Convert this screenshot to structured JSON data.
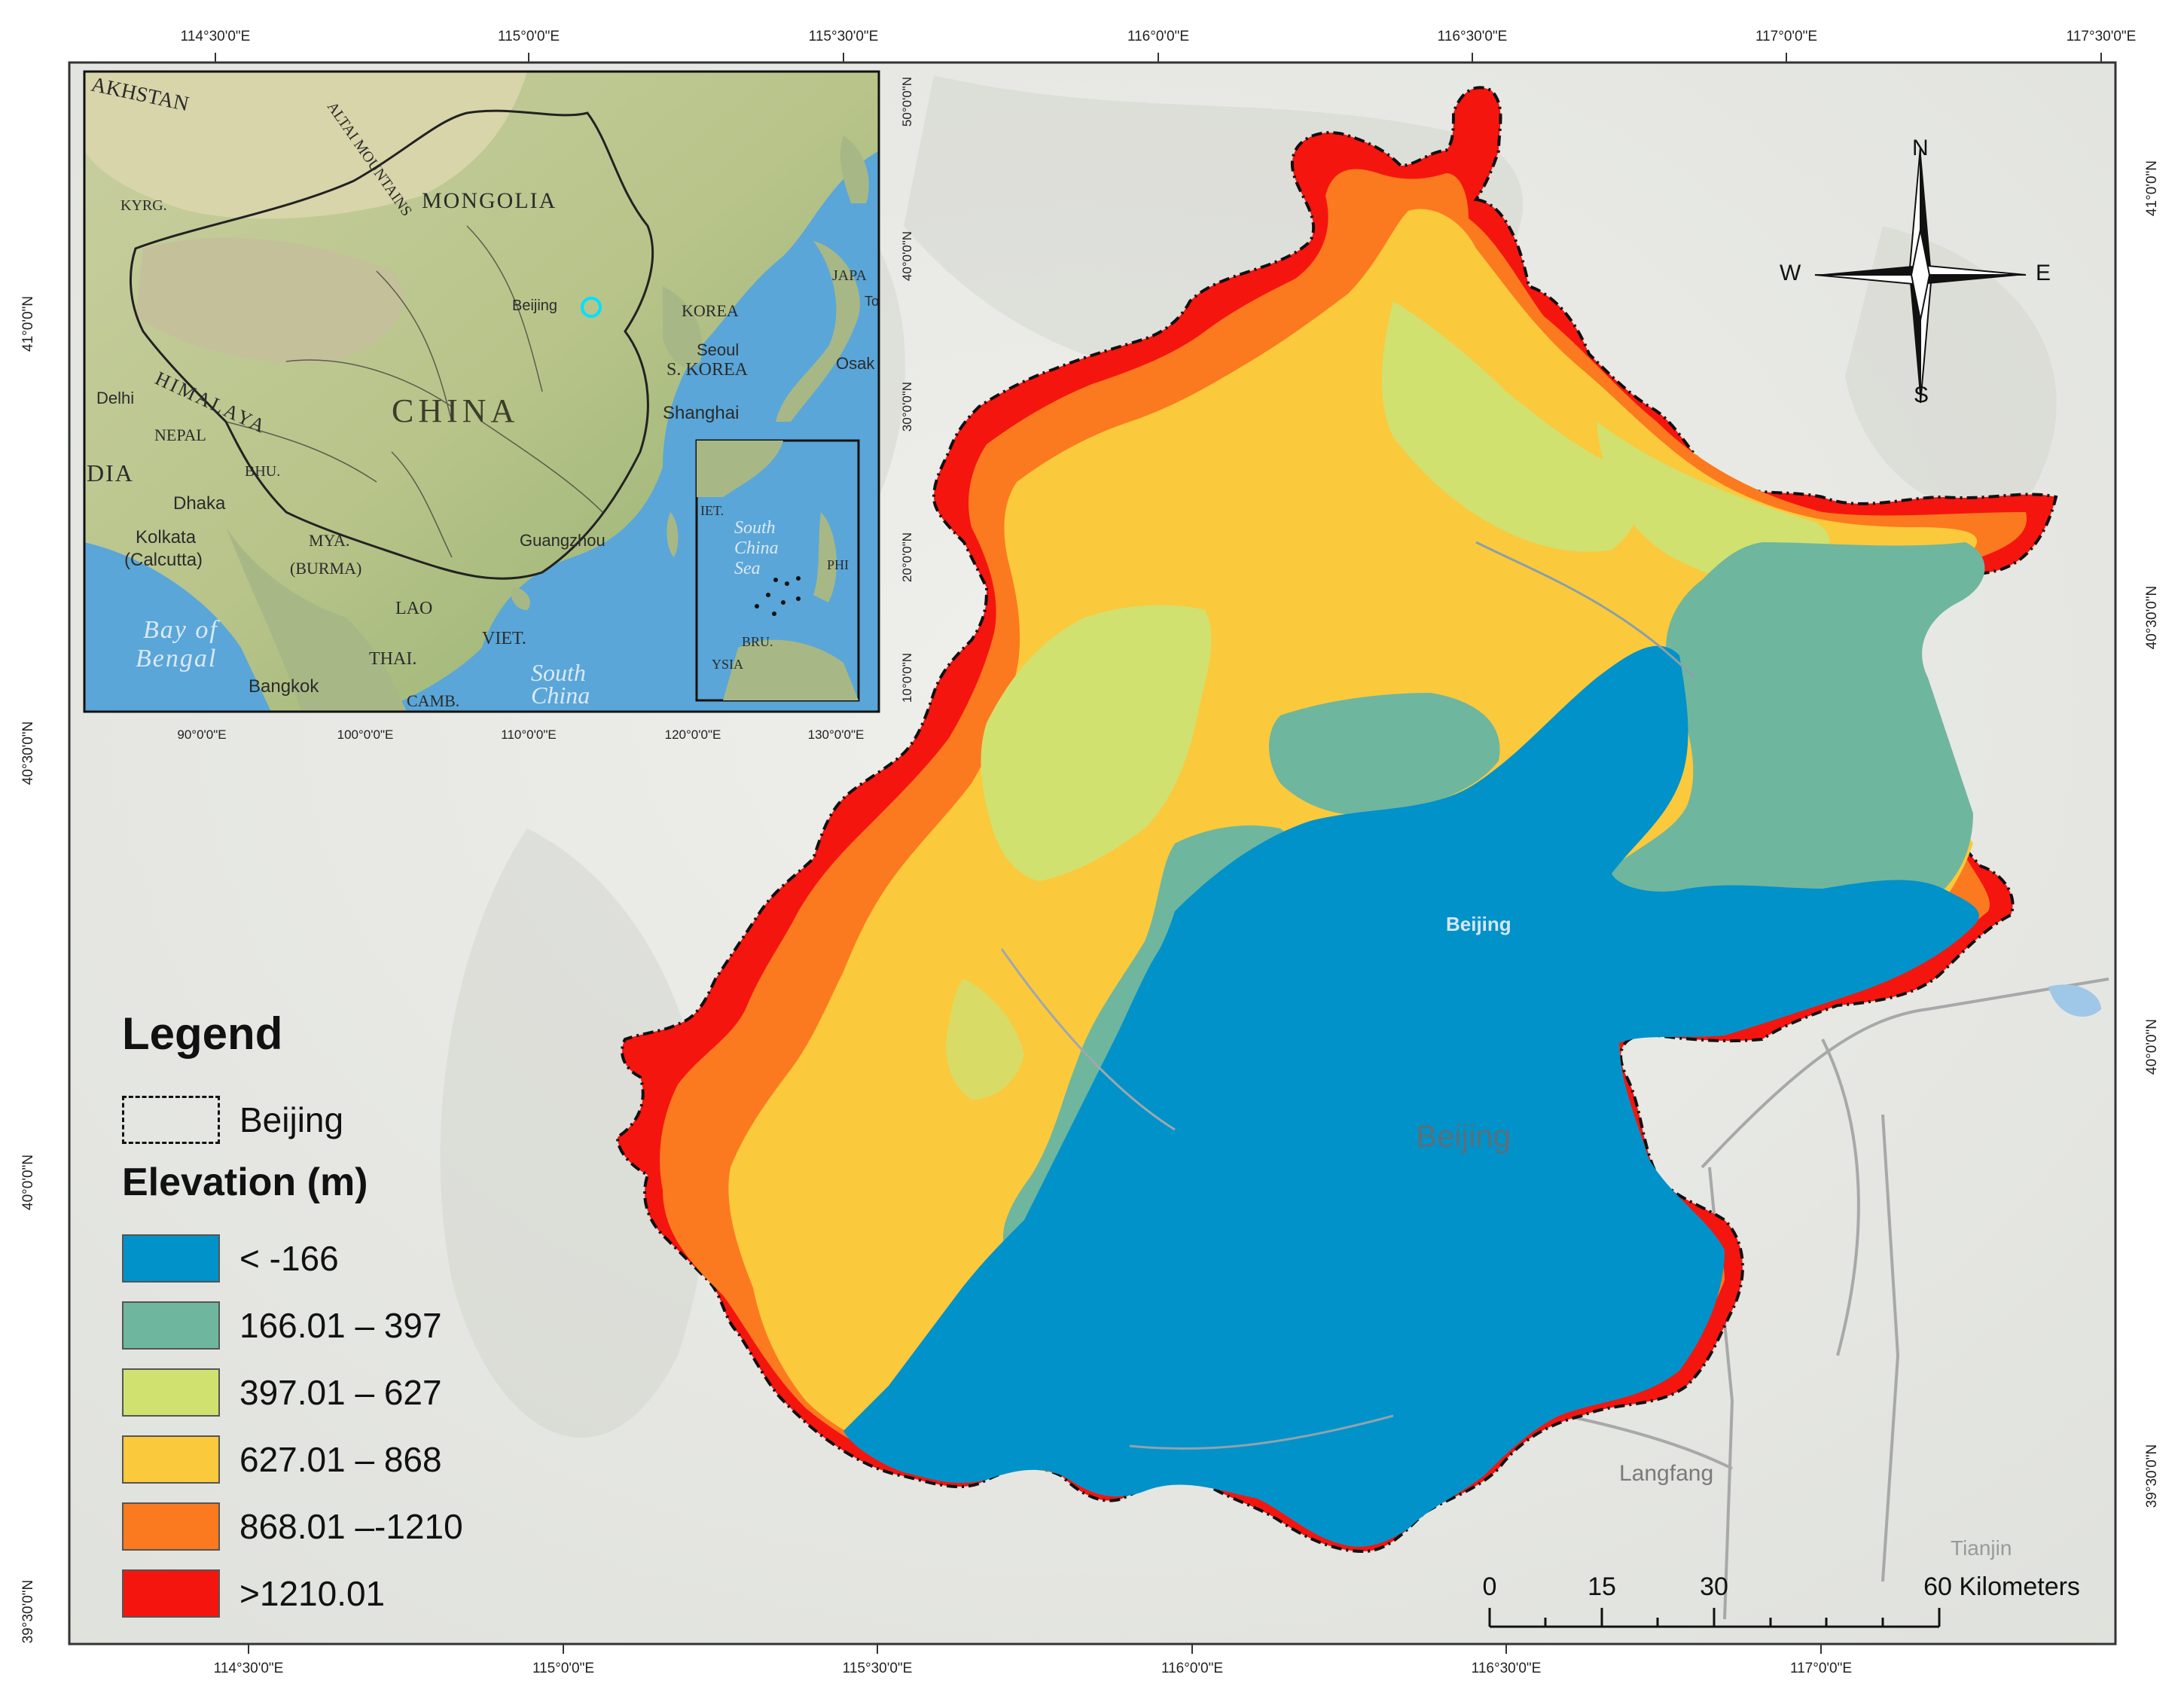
{
  "map": {
    "top_ticks": [
      "114°30'0\"E",
      "115°0'0\"E",
      "115°30'0\"E",
      "116°0'0\"E",
      "116°30'0\"E",
      "117°0'0\"E",
      "117°30'0\"E"
    ],
    "bottom_ticks": [
      "114°30'0\"E",
      "115°0'0\"E",
      "115°30'0\"E",
      "116°0'0\"E",
      "116°30'0\"E",
      "117°0'0\"E"
    ],
    "left_ticks": [
      "41°0'0\"N",
      "40°30'0\"N",
      "40°0'0\"N",
      "39°30'0\"N"
    ],
    "right_ticks": [
      "41°0'0\"N",
      "40°30'0\"N",
      "40°0'0\"N",
      "39°30'0\"N"
    ],
    "places": {
      "beijing_small": "Beijing",
      "beijing_large": "Beijing",
      "langfang": "Langfang",
      "tianjin": "Tianjin"
    }
  },
  "inset": {
    "bottom_ticks": [
      "90°0'0\"E",
      "100°0'0\"E",
      "110°0'0\"E",
      "120°0'0\"E",
      "130°0'0\"E"
    ],
    "right_ticks": [
      "50°0'0\"N",
      "40°0'0\"N",
      "30°0'0\"N",
      "20°0'0\"N",
      "10°0'0\"N"
    ],
    "labels": {
      "kazakhstan": "AKHSTAN",
      "altai": "ALTAI MOUNTAINS",
      "mongolia": "MONGOLIA",
      "kyrg": "KYRG.",
      "himalaya": "HIMALAYA",
      "china": "CHINA",
      "delhi": "Delhi",
      "nepal": "NEPAL",
      "bhu": "BHU.",
      "dia": "DIA",
      "dhaka": "Dhaka",
      "kolkata": "Kolkata",
      "calcutta": "(Calcutta)",
      "mya": "MYA.",
      "burma": "(BURMA)",
      "lao": "LAO",
      "viet": "VIET.",
      "thai": "THAI.",
      "camb": "CAMB.",
      "bangkok": "Bangkok",
      "bay": "Bay of",
      "bengal": "Bengal",
      "south_china_1": "South",
      "china_sea_1": "China",
      "beijing": "Beijing",
      "korea": "KOREA",
      "seoul": "Seoul",
      "s_korea": "S. KOREA",
      "shanghai": "Shanghai",
      "guangzhou": "Guangzhou",
      "japan": "JAPA",
      "osaka": "Osak",
      "to": "To",
      "sub_viet": "IET.",
      "sub_south": "South",
      "sub_china": "China",
      "sub_sea": "Sea",
      "sub_phi": "PHI",
      "sub_bru": "BRU.",
      "sub_ysia": "YSIA"
    }
  },
  "legend": {
    "title": "Legend",
    "boundary_label": "Beijing",
    "elevation_title": "Elevation (m)",
    "classes": [
      {
        "label": "< -166",
        "color": "#0092c9"
      },
      {
        "label": "166.01 – 397",
        "color": "#6fb69e"
      },
      {
        "label": "397.01 – 627",
        "color": "#d0e170"
      },
      {
        "label": "627.01 – 868",
        "color": "#fbc93c"
      },
      {
        "label": "868.01 –-1210",
        "color": "#fb7a1f"
      },
      {
        "label": ">1210.01",
        "color": "#f5150f"
      }
    ]
  },
  "compass": {
    "n": "N",
    "s": "S",
    "e": "E",
    "w": "W"
  },
  "scale_bar": {
    "labels": [
      "0",
      "15",
      "30",
      "60 Kilometers"
    ]
  },
  "colors": {
    "low": "#0092c9",
    "teal": "#6fb69e",
    "lime": "#d0e170",
    "yellow": "#fbc93c",
    "orange": "#fb7a1f",
    "red": "#f5150f",
    "terrain": "#e9ebe6",
    "ocean": "#5aa6d8"
  }
}
